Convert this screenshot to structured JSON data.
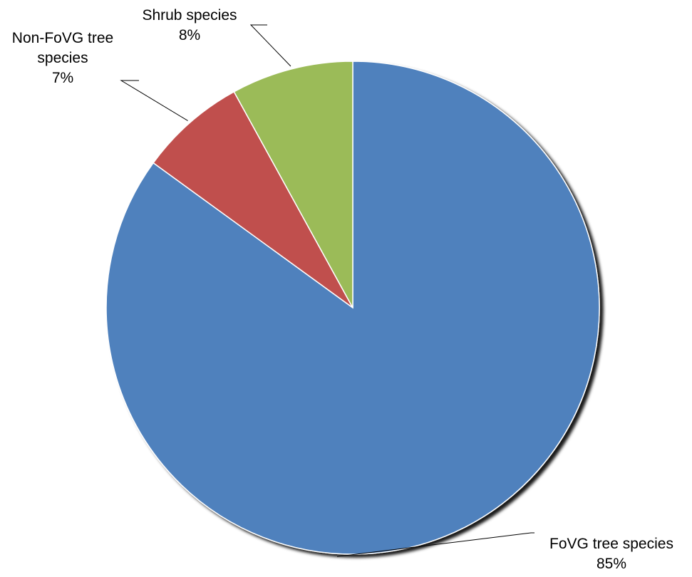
{
  "chart_data": {
    "type": "pie",
    "title": "",
    "slices": [
      {
        "name": "FoVG tree species",
        "label_lines": [
          "FoVG tree species"
        ],
        "value": 85,
        "value_label": "85%",
        "color": "#4F81BD"
      },
      {
        "name": "Non-FoVG tree species",
        "label_lines": [
          "Non-FoVG tree",
          "species"
        ],
        "value": 7,
        "value_label": "7%",
        "color": "#C0504D"
      },
      {
        "name": "Shrub species",
        "label_lines": [
          "Shrub species"
        ],
        "value": 8,
        "value_label": "8%",
        "color": "#9BBB59"
      }
    ],
    "start_angle_deg": 0,
    "direction": "clockwise",
    "legend": "none"
  }
}
